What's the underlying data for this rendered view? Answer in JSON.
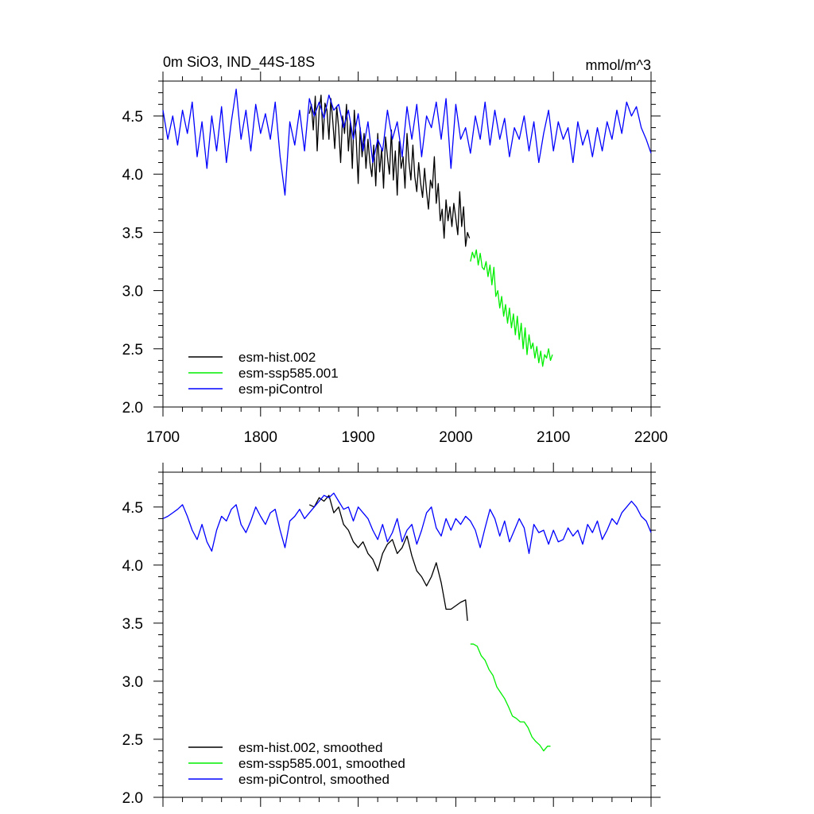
{
  "chart_data": [
    {
      "type": "line",
      "title_left": "0m SiO3, IND_44S-18S",
      "title_right": "mmol/m^3",
      "xlim": [
        1700,
        2200
      ],
      "ylim": [
        2.0,
        4.8
      ],
      "x_ticks": [
        "1700",
        "1800",
        "1900",
        "2000",
        "2100",
        "2200"
      ],
      "y_ticks": [
        "2.0",
        "2.5",
        "3.0",
        "3.5",
        "4.0",
        "4.5"
      ],
      "grid": false,
      "legend_position": "bottom-left",
      "series": [
        {
          "name": "esm-hist.002",
          "color": "#000000",
          "x": [
            1850,
            1852,
            1854,
            1856,
            1858,
            1860,
            1862,
            1864,
            1866,
            1868,
            1870,
            1872,
            1874,
            1876,
            1878,
            1880,
            1882,
            1884,
            1886,
            1888,
            1890,
            1892,
            1894,
            1896,
            1898,
            1900,
            1902,
            1904,
            1906,
            1908,
            1910,
            1912,
            1914,
            1916,
            1918,
            1920,
            1922,
            1924,
            1926,
            1928,
            1930,
            1932,
            1934,
            1936,
            1938,
            1940,
            1942,
            1944,
            1946,
            1948,
            1950,
            1952,
            1954,
            1956,
            1958,
            1960,
            1962,
            1964,
            1966,
            1968,
            1970,
            1972,
            1974,
            1976,
            1978,
            1980,
            1982,
            1984,
            1986,
            1988,
            1990,
            1992,
            1994,
            1996,
            1998,
            2000,
            2002,
            2004,
            2006,
            2008,
            2010,
            2012,
            2014
          ],
          "y": [
            4.52,
            4.6,
            4.38,
            4.67,
            4.2,
            4.55,
            4.68,
            4.3,
            4.61,
            4.55,
            4.3,
            4.65,
            4.45,
            4.22,
            4.58,
            4.4,
            4.1,
            4.5,
            4.35,
            4.6,
            4.2,
            4.45,
            4.05,
            4.55,
            4.3,
            3.92,
            4.4,
            4.15,
            4.35,
            4.05,
            4.3,
            4.1,
            3.98,
            4.25,
            3.9,
            4.35,
            4.02,
            4.22,
            3.88,
            4.32,
            4.15,
            4.0,
            4.38,
            3.95,
            4.2,
            3.82,
            4.28,
            4.05,
            4.15,
            3.88,
            4.35,
            4.1,
            3.95,
            4.25,
            3.98,
            3.85,
            4.1,
            3.92,
            3.8,
            4.05,
            3.85,
            3.7,
            3.95,
            3.88,
            4.15,
            3.75,
            3.92,
            3.6,
            3.7,
            3.45,
            3.78,
            3.6,
            3.72,
            3.55,
            3.75,
            3.62,
            3.48,
            3.85,
            3.55,
            3.72,
            3.38,
            3.5,
            3.45
          ]
        },
        {
          "name": "esm-ssp585.001",
          "color": "#00ee00",
          "x": [
            2015,
            2017,
            2019,
            2021,
            2023,
            2025,
            2027,
            2029,
            2031,
            2033,
            2035,
            2037,
            2039,
            2041,
            2043,
            2045,
            2047,
            2049,
            2051,
            2053,
            2055,
            2057,
            2059,
            2061,
            2063,
            2065,
            2067,
            2069,
            2071,
            2073,
            2075,
            2077,
            2079,
            2081,
            2083,
            2085,
            2087,
            2089,
            2091,
            2093,
            2095,
            2097,
            2099
          ],
          "y": [
            3.25,
            3.33,
            3.28,
            3.35,
            3.22,
            3.32,
            3.2,
            3.18,
            3.25,
            3.12,
            3.22,
            3.05,
            3.2,
            2.95,
            3.0,
            2.85,
            2.95,
            2.78,
            2.88,
            2.72,
            2.85,
            2.68,
            2.8,
            2.62,
            2.78,
            2.58,
            2.72,
            2.5,
            2.68,
            2.45,
            2.62,
            2.5,
            2.55,
            2.42,
            2.52,
            2.38,
            2.48,
            2.35,
            2.45,
            2.42,
            2.5,
            2.4,
            2.45
          ]
        },
        {
          "name": "esm-piControl",
          "color": "#0000ff",
          "x": [
            1700,
            1705,
            1710,
            1715,
            1720,
            1725,
            1730,
            1735,
            1740,
            1745,
            1750,
            1755,
            1760,
            1765,
            1770,
            1775,
            1780,
            1785,
            1790,
            1795,
            1800,
            1805,
            1810,
            1815,
            1820,
            1825,
            1830,
            1835,
            1840,
            1845,
            1850,
            1855,
            1860,
            1865,
            1870,
            1875,
            1880,
            1885,
            1890,
            1895,
            1900,
            1905,
            1910,
            1915,
            1920,
            1925,
            1930,
            1935,
            1940,
            1945,
            1950,
            1955,
            1960,
            1965,
            1970,
            1975,
            1980,
            1985,
            1990,
            1995,
            2000,
            2005,
            2010,
            2015,
            2020,
            2025,
            2030,
            2035,
            2040,
            2045,
            2050,
            2055,
            2060,
            2065,
            2070,
            2075,
            2080,
            2085,
            2090,
            2095,
            2100,
            2105,
            2110,
            2115,
            2120,
            2125,
            2130,
            2135,
            2140,
            2145,
            2150,
            2155,
            2160,
            2165,
            2170,
            2175,
            2180,
            2185,
            2190,
            2195,
            2200
          ],
          "y": [
            4.55,
            4.3,
            4.5,
            4.25,
            4.55,
            4.35,
            4.62,
            4.15,
            4.45,
            4.05,
            4.5,
            4.2,
            4.58,
            4.1,
            4.45,
            4.73,
            4.3,
            4.55,
            4.2,
            4.6,
            4.35,
            4.52,
            4.3,
            4.62,
            4.15,
            3.82,
            4.45,
            4.25,
            4.55,
            4.2,
            4.65,
            4.5,
            4.62,
            4.48,
            4.68,
            4.55,
            4.6,
            4.4,
            4.55,
            4.3,
            4.52,
            4.2,
            4.45,
            4.1,
            4.3,
            4.2,
            4.55,
            4.3,
            4.45,
            4.15,
            4.58,
            4.3,
            4.6,
            4.15,
            4.5,
            4.4,
            4.62,
            4.3,
            4.65,
            4.05,
            4.6,
            4.3,
            4.4,
            4.18,
            4.5,
            4.3,
            4.62,
            4.25,
            4.55,
            4.3,
            4.48,
            4.15,
            4.4,
            4.3,
            4.5,
            4.2,
            4.45,
            4.1,
            4.35,
            4.55,
            4.2,
            4.45,
            4.3,
            4.4,
            4.1,
            4.45,
            4.25,
            4.38,
            4.15,
            4.4,
            4.2,
            4.45,
            4.3,
            4.55,
            4.35,
            4.62,
            4.5,
            4.58,
            4.4,
            4.3,
            4.18
          ]
        }
      ]
    },
    {
      "type": "line",
      "xlim": [
        1700,
        2200
      ],
      "ylim": [
        2.0,
        4.8
      ],
      "y_ticks": [
        "2.0",
        "2.5",
        "3.0",
        "3.5",
        "4.0",
        "4.5"
      ],
      "grid": false,
      "legend_position": "bottom-left",
      "series": [
        {
          "name": "esm-hist.002, smoothed",
          "color": "#000000",
          "x": [
            1850,
            1855,
            1860,
            1865,
            1870,
            1875,
            1880,
            1885,
            1890,
            1895,
            1900,
            1905,
            1910,
            1915,
            1920,
            1925,
            1930,
            1935,
            1940,
            1945,
            1950,
            1955,
            1960,
            1965,
            1970,
            1975,
            1980,
            1985,
            1990,
            1995,
            2000,
            2005,
            2010,
            2012
          ],
          "y": [
            4.52,
            4.5,
            4.58,
            4.55,
            4.6,
            4.45,
            4.5,
            4.35,
            4.3,
            4.2,
            4.15,
            4.2,
            4.1,
            4.05,
            3.95,
            4.1,
            4.18,
            4.22,
            4.1,
            4.15,
            4.25,
            4.08,
            3.95,
            3.9,
            3.82,
            3.9,
            4.02,
            3.85,
            3.62,
            3.62,
            3.65,
            3.68,
            3.7,
            3.52
          ]
        },
        {
          "name": "esm-ssp585.001, smoothed",
          "color": "#00ee00",
          "x": [
            2015,
            2018,
            2022,
            2026,
            2030,
            2034,
            2038,
            2042,
            2046,
            2050,
            2054,
            2058,
            2062,
            2066,
            2070,
            2074,
            2078,
            2082,
            2086,
            2090,
            2094,
            2097
          ],
          "y": [
            3.32,
            3.32,
            3.3,
            3.22,
            3.18,
            3.1,
            3.05,
            2.95,
            2.9,
            2.85,
            2.78,
            2.7,
            2.68,
            2.65,
            2.65,
            2.6,
            2.52,
            2.48,
            2.45,
            2.4,
            2.44,
            2.44
          ]
        },
        {
          "name": "esm-piControl, smoothed",
          "color": "#0000ff",
          "x": [
            1700,
            1705,
            1710,
            1715,
            1720,
            1725,
            1730,
            1735,
            1740,
            1745,
            1750,
            1755,
            1760,
            1765,
            1770,
            1775,
            1780,
            1785,
            1790,
            1795,
            1800,
            1805,
            1810,
            1815,
            1820,
            1825,
            1830,
            1835,
            1840,
            1845,
            1850,
            1855,
            1860,
            1865,
            1870,
            1875,
            1880,
            1885,
            1890,
            1895,
            1900,
            1905,
            1910,
            1915,
            1920,
            1925,
            1930,
            1935,
            1940,
            1945,
            1950,
            1955,
            1960,
            1965,
            1970,
            1975,
            1980,
            1985,
            1990,
            1995,
            2000,
            2005,
            2010,
            2015,
            2020,
            2025,
            2030,
            2035,
            2040,
            2045,
            2050,
            2055,
            2060,
            2065,
            2070,
            2075,
            2080,
            2085,
            2090,
            2095,
            2100,
            2105,
            2110,
            2115,
            2120,
            2125,
            2130,
            2135,
            2140,
            2145,
            2150,
            2155,
            2160,
            2165,
            2170,
            2175,
            2180,
            2185,
            2190,
            2195,
            2200
          ],
          "y": [
            4.4,
            4.42,
            4.45,
            4.48,
            4.52,
            4.42,
            4.3,
            4.22,
            4.35,
            4.2,
            4.12,
            4.3,
            4.42,
            4.38,
            4.48,
            4.52,
            4.35,
            4.28,
            4.38,
            4.5,
            4.42,
            4.35,
            4.45,
            4.48,
            4.3,
            4.15,
            4.38,
            4.42,
            4.48,
            4.4,
            4.45,
            4.5,
            4.55,
            4.6,
            4.58,
            4.62,
            4.55,
            4.48,
            4.5,
            4.38,
            4.5,
            4.45,
            4.4,
            4.3,
            4.22,
            4.35,
            4.2,
            4.28,
            4.4,
            4.2,
            4.3,
            4.35,
            4.18,
            4.3,
            4.45,
            4.5,
            4.32,
            4.25,
            4.4,
            4.3,
            4.4,
            4.35,
            4.42,
            4.38,
            4.3,
            4.15,
            4.32,
            4.48,
            4.4,
            4.25,
            4.38,
            4.2,
            4.3,
            4.4,
            4.32,
            4.1,
            4.35,
            4.28,
            4.3,
            4.18,
            4.3,
            4.2,
            4.22,
            4.32,
            4.25,
            4.3,
            4.18,
            4.35,
            4.28,
            4.38,
            4.22,
            4.3,
            4.4,
            4.35,
            4.45,
            4.5,
            4.55,
            4.5,
            4.42,
            4.38,
            4.28
          ]
        }
      ]
    }
  ]
}
